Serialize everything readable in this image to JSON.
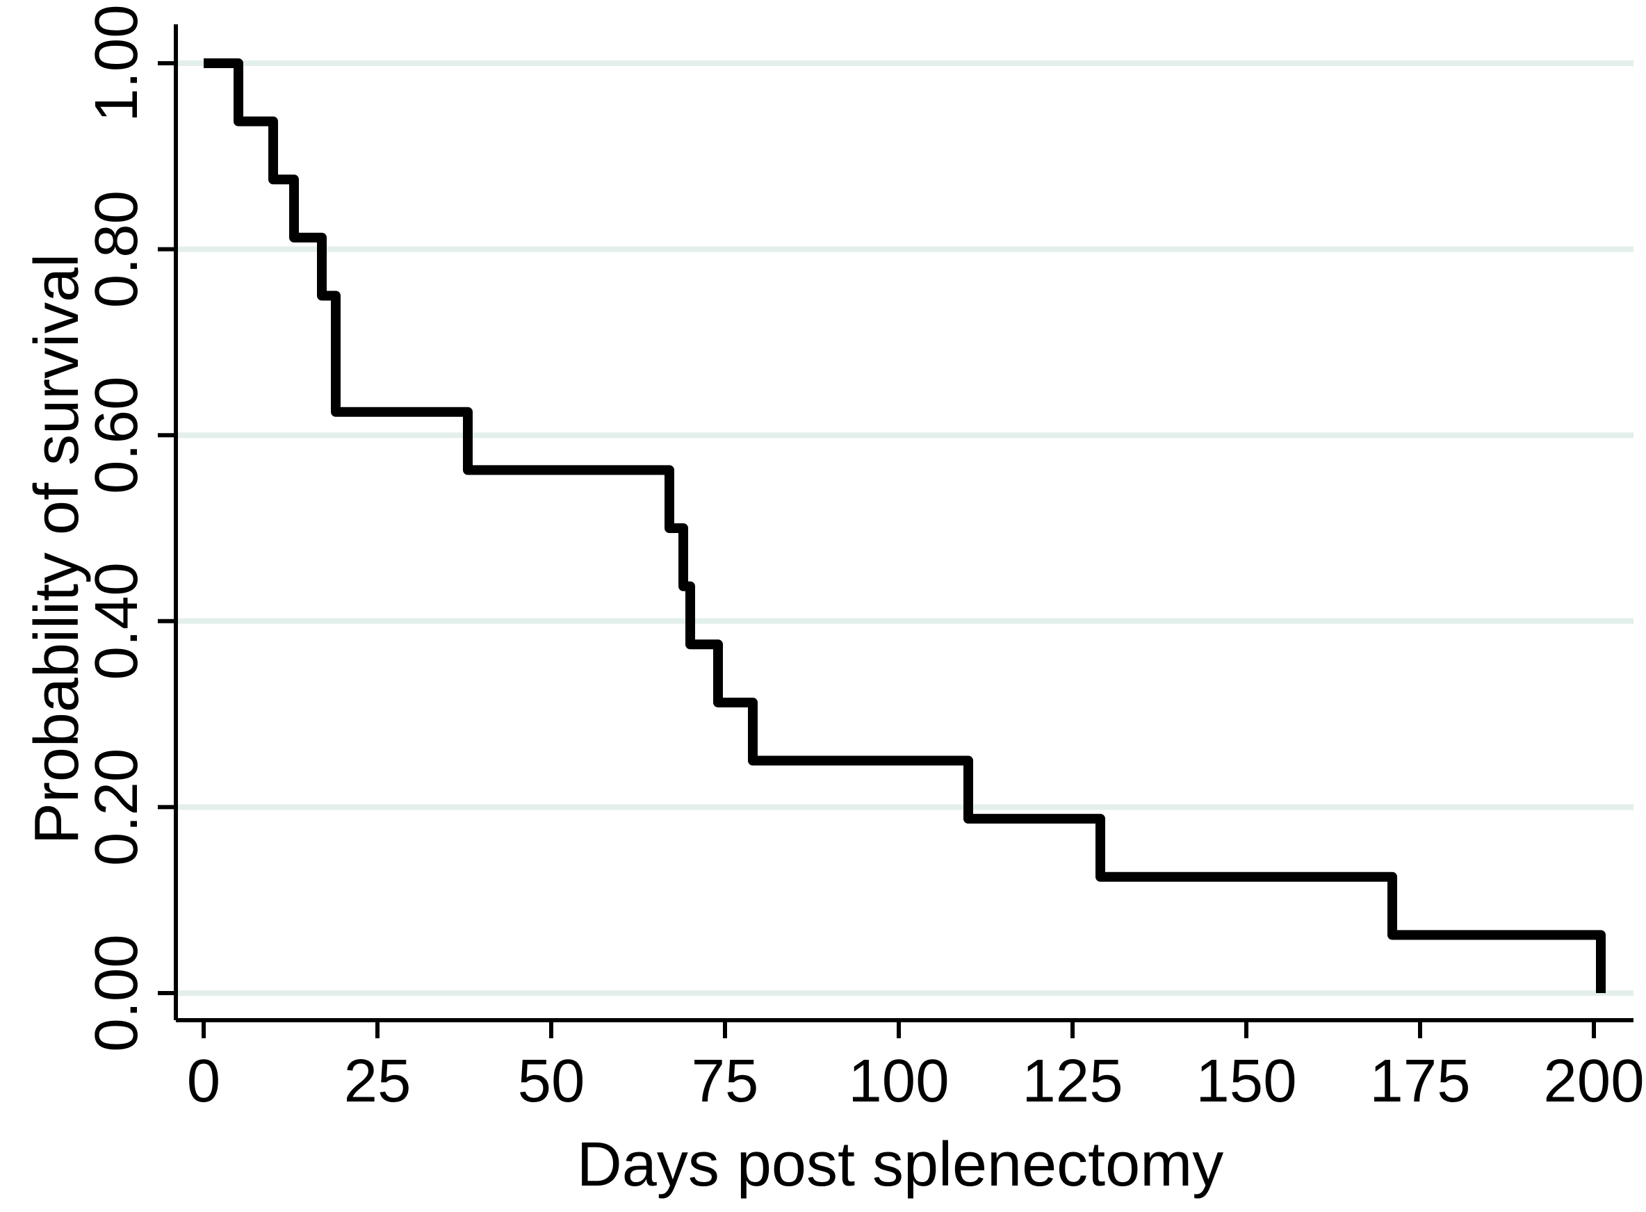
{
  "figure": {
    "background": "#ffffff"
  },
  "chart_data": {
    "type": "line",
    "subtype": "kaplan-meier-step",
    "title": "",
    "xlabel": "Days post splenectomy",
    "ylabel": "Probability of survival",
    "xlim": [
      0,
      200
    ],
    "ylim": [
      0,
      1
    ],
    "x_ticks": [
      0,
      25,
      50,
      75,
      100,
      125,
      150,
      175,
      200
    ],
    "x_tick_labels": [
      "0",
      "25",
      "50",
      "75",
      "100",
      "125",
      "150",
      "175",
      "200"
    ],
    "y_ticks": [
      0.0,
      0.2,
      0.4,
      0.6,
      0.8,
      1.0
    ],
    "y_tick_labels": [
      "0.00",
      "0.20",
      "0.40",
      "0.60",
      "0.80",
      "1.00"
    ],
    "grid": "horizontal",
    "legend": false,
    "series": [
      {
        "name": "survival",
        "step": "after",
        "points": [
          {
            "t": 0,
            "s": 1.0
          },
          {
            "t": 5,
            "s": 0.9375
          },
          {
            "t": 10,
            "s": 0.875
          },
          {
            "t": 13,
            "s": 0.8125
          },
          {
            "t": 17,
            "s": 0.75
          },
          {
            "t": 19,
            "s": 0.625
          },
          {
            "t": 38,
            "s": 0.5625
          },
          {
            "t": 67,
            "s": 0.5
          },
          {
            "t": 69,
            "s": 0.4375
          },
          {
            "t": 70,
            "s": 0.375
          },
          {
            "t": 74,
            "s": 0.3125
          },
          {
            "t": 79,
            "s": 0.25
          },
          {
            "t": 110,
            "s": 0.1875
          },
          {
            "t": 129,
            "s": 0.125
          },
          {
            "t": 171,
            "s": 0.0625
          },
          {
            "t": 201,
            "s": 0.0
          }
        ]
      }
    ],
    "colors": {
      "line": "#000000",
      "grid": "#e3efec",
      "axis": "#000000",
      "text": "#000000",
      "background": "#ffffff"
    }
  }
}
